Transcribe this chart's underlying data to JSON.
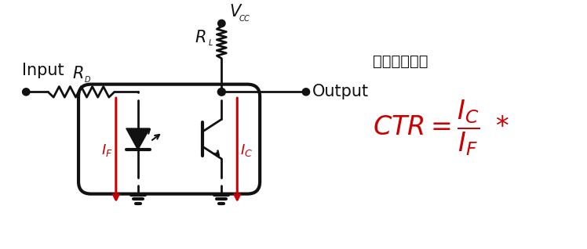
{
  "bg_color": "#FFFFFF",
  "black": "#111111",
  "red": "#CC0000",
  "fig_width": 7.48,
  "fig_height": 3.18,
  "dpi": 100,
  "label_input": "Input",
  "label_rd": "R",
  "label_rd_sub": "D",
  "label_rl": "R",
  "label_rl_sub": "L",
  "label_output": "Output",
  "label_vcc": "V",
  "label_vcc_sub": "CC",
  "label_if": "I",
  "label_if_sub": "F",
  "label_ic": "I",
  "label_ic_sub": "C",
  "label_chinese": "电流传输比："
}
